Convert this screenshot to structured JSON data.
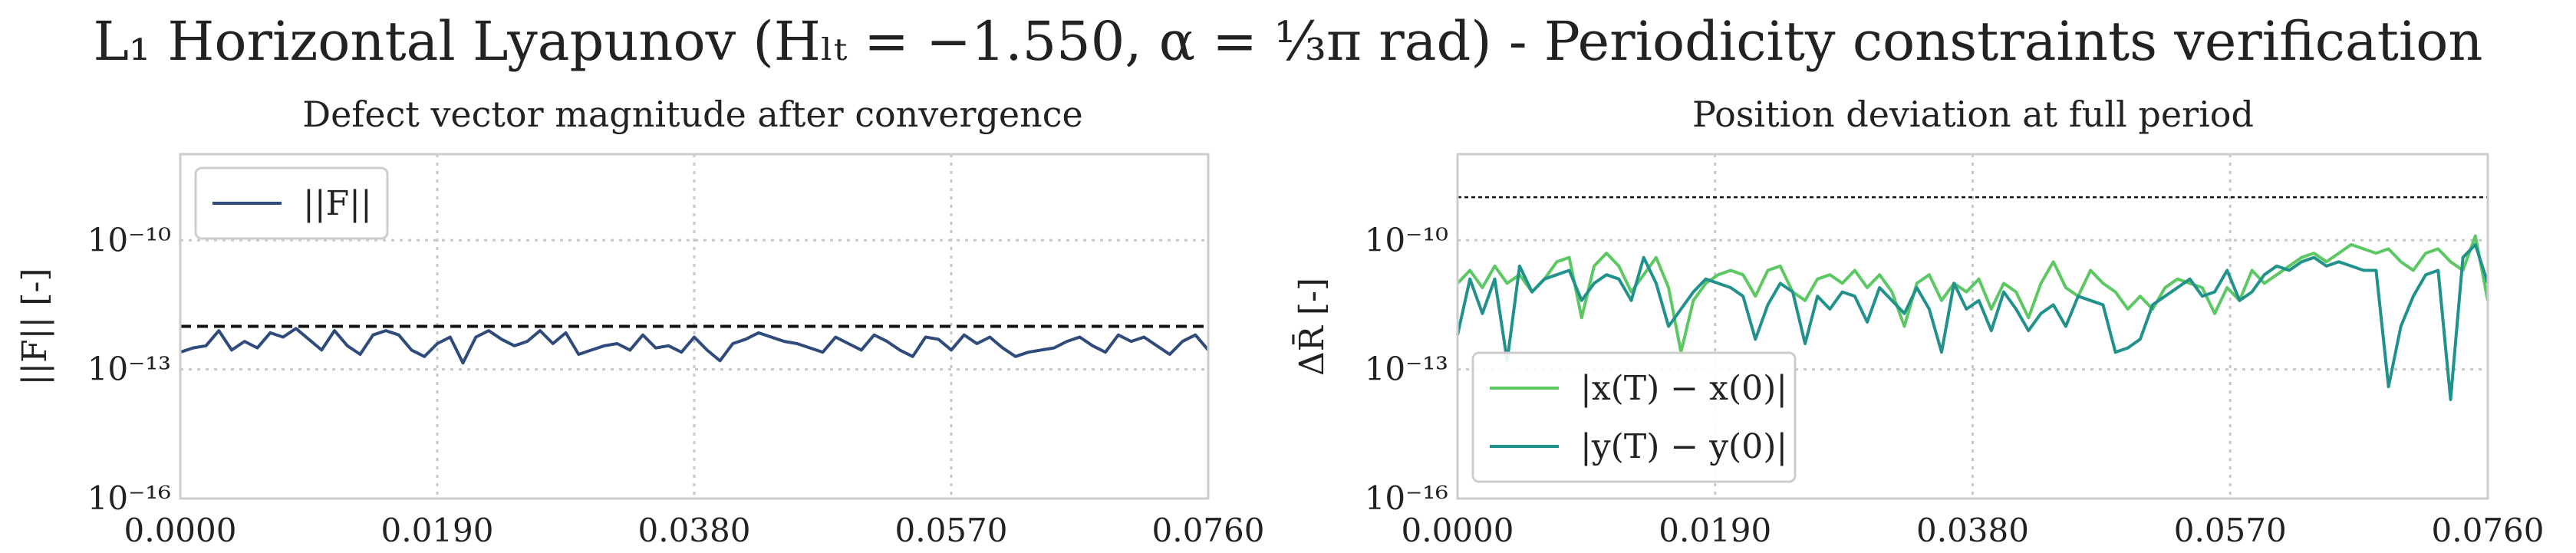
{
  "suptitle": "L₁ Horizontal Lyapunov (Hₗₜ = −1.550, α = ⅓π rad) - Periodicity constraints verification",
  "chart_data": [
    {
      "type": "line",
      "title": "Defect vector magnitude after convergence",
      "xlabel": "",
      "ylabel": "||F|| [-]",
      "yscale": "log",
      "xlim": [
        0.0,
        0.076
      ],
      "ylim_exp": [
        -16,
        -8
      ],
      "xticks": [
        "0.0000",
        "0.0190",
        "0.0380",
        "0.0570",
        "0.0760"
      ],
      "yticks": [
        "10⁻¹⁰",
        "10⁻¹³",
        "10⁻¹⁶"
      ],
      "grid": true,
      "legend_position": "top-left",
      "threshold_log10": -12,
      "series": [
        {
          "name": "||F||",
          "color": "#2f4b7c",
          "log10_values": [
            -12.6,
            -12.5,
            -12.45,
            -12.1,
            -12.55,
            -12.35,
            -12.5,
            -12.15,
            -12.25,
            -12.05,
            -12.3,
            -12.55,
            -12.1,
            -12.45,
            -12.65,
            -12.2,
            -12.1,
            -12.2,
            -12.55,
            -12.7,
            -12.4,
            -12.25,
            -12.85,
            -12.25,
            -12.1,
            -12.3,
            -12.45,
            -12.35,
            -12.1,
            -12.4,
            -12.15,
            -12.65,
            -12.55,
            -12.45,
            -12.4,
            -12.55,
            -12.2,
            -12.5,
            -12.45,
            -12.6,
            -12.25,
            -12.55,
            -12.8,
            -12.4,
            -12.3,
            -12.15,
            -12.25,
            -12.35,
            -12.4,
            -12.5,
            -12.6,
            -12.25,
            -12.4,
            -12.55,
            -12.2,
            -12.35,
            -12.55,
            -12.7,
            -12.25,
            -12.3,
            -12.55,
            -12.2,
            -12.4,
            -12.25,
            -12.5,
            -12.7,
            -12.6,
            -12.55,
            -12.5,
            -12.35,
            -12.25,
            -12.45,
            -12.6,
            -12.2,
            -12.35,
            -12.25,
            -12.45,
            -12.65,
            -12.35,
            -12.2,
            -12.55
          ]
        }
      ]
    },
    {
      "type": "line",
      "title": "Position deviation at full period",
      "xlabel": "",
      "ylabel": "ΔR̄ [-]",
      "yscale": "log",
      "xlim": [
        0.0,
        0.076
      ],
      "ylim_exp": [
        -16,
        -8
      ],
      "xticks": [
        "0.0000",
        "0.0190",
        "0.0380",
        "0.0570",
        "0.0760"
      ],
      "yticks": [
        "10⁻¹⁰",
        "10⁻¹³",
        "10⁻¹⁶"
      ],
      "grid": true,
      "legend_position": "bottom-left",
      "threshold_log10": -9,
      "series": [
        {
          "name": "|x(T) − x(0)|",
          "color": "#5cc863",
          "log10_values": [
            -11.0,
            -10.7,
            -11.1,
            -10.6,
            -11.0,
            -10.8,
            -11.2,
            -10.9,
            -10.5,
            -10.4,
            -11.8,
            -10.6,
            -10.3,
            -10.6,
            -11.2,
            -10.8,
            -10.4,
            -11.1,
            -12.6,
            -11.4,
            -11.0,
            -10.8,
            -10.7,
            -10.8,
            -11.3,
            -10.7,
            -10.6,
            -11.2,
            -11.4,
            -10.9,
            -10.8,
            -11.0,
            -10.7,
            -11.1,
            -10.8,
            -11.2,
            -12.0,
            -11.0,
            -10.8,
            -11.4,
            -11.0,
            -11.2,
            -10.9,
            -11.6,
            -11.0,
            -11.2,
            -11.8,
            -11.0,
            -10.5,
            -11.1,
            -11.3,
            -10.7,
            -11.0,
            -11.2,
            -11.6,
            -11.3,
            -11.6,
            -11.1,
            -10.9,
            -11.0,
            -11.1,
            -11.7,
            -11.1,
            -11.4,
            -10.7,
            -11.0,
            -10.8,
            -10.6,
            -10.4,
            -10.3,
            -10.5,
            -10.3,
            -10.1,
            -10.2,
            -10.3,
            -10.2,
            -10.5,
            -10.7,
            -10.3,
            -10.2,
            -10.5,
            -10.7,
            -9.9,
            -11.4
          ]
        },
        {
          "name": "|y(T) − y(0)|",
          "color": "#21918c",
          "log10_values": [
            -12.2,
            -10.9,
            -11.7,
            -10.9,
            -12.8,
            -10.6,
            -11.2,
            -10.9,
            -10.8,
            -10.7,
            -11.4,
            -11.0,
            -10.8,
            -10.9,
            -11.4,
            -10.4,
            -11.0,
            -12.0,
            -11.6,
            -11.2,
            -10.9,
            -11.0,
            -11.1,
            -11.3,
            -12.3,
            -11.5,
            -11.0,
            -11.2,
            -12.4,
            -11.3,
            -11.6,
            -11.2,
            -11.3,
            -11.9,
            -11.1,
            -11.4,
            -11.7,
            -11.1,
            -11.6,
            -12.6,
            -11.0,
            -11.6,
            -11.4,
            -12.1,
            -11.2,
            -11.6,
            -12.1,
            -11.7,
            -11.5,
            -12.0,
            -11.3,
            -11.4,
            -11.5,
            -12.6,
            -12.5,
            -12.3,
            -11.5,
            -11.3,
            -11.1,
            -10.9,
            -11.3,
            -11.2,
            -10.7,
            -11.4,
            -11.2,
            -10.8,
            -10.6,
            -10.7,
            -10.5,
            -10.4,
            -10.6,
            -10.5,
            -10.6,
            -10.7,
            -10.7,
            -13.4,
            -12.0,
            -11.3,
            -10.8,
            -10.7,
            -13.7,
            -10.4,
            -10.1,
            -11.0
          ]
        }
      ]
    }
  ]
}
